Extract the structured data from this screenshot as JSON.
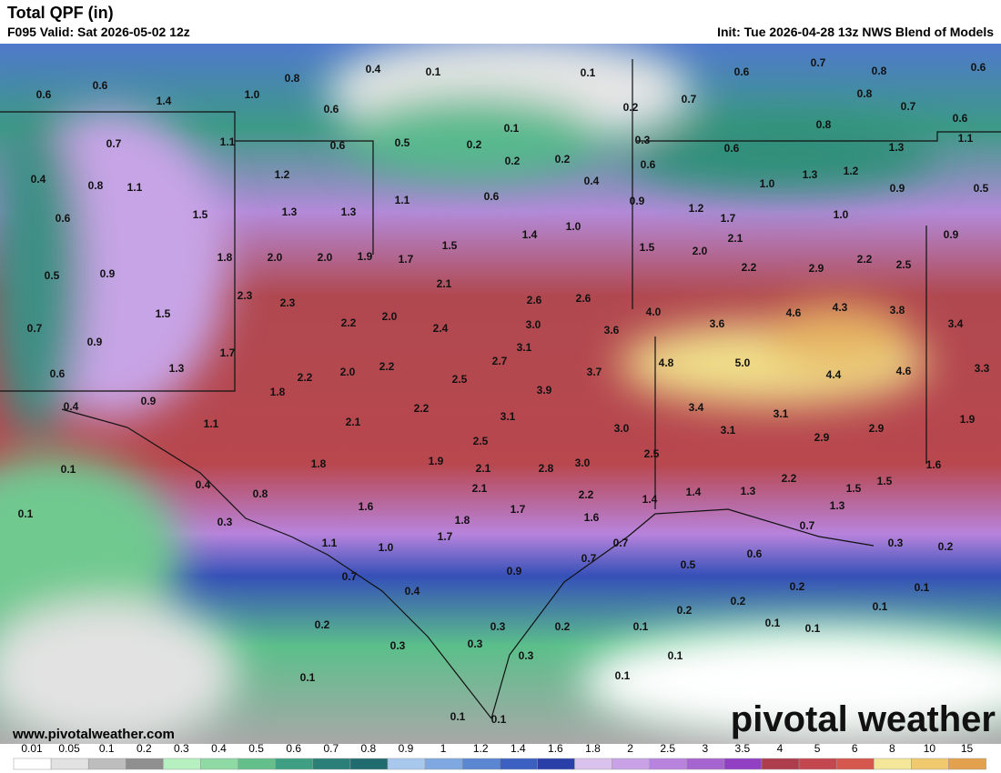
{
  "header": {
    "title": "Total QPF (in)",
    "valid": "F095 Valid: Sat 2026-05-02 12z",
    "init": "Init: Tue 2026-04-28 13z NWS Blend of Models"
  },
  "map_labels": [
    "0.6",
    "0.6",
    "1.4",
    "1.0",
    "0.8",
    "0.6",
    "0.4",
    "0.1",
    "0.1",
    "0.6",
    "0.7",
    "0.8",
    "0.6",
    "0.8",
    "0.7",
    "0.2",
    "0.7",
    "0.6",
    "0.1",
    "0.8",
    "1.1",
    "0.7",
    "1.1",
    "0.6",
    "0.5",
    "0.2",
    "0.3",
    "0.6",
    "1.3",
    "0.2",
    "0.2",
    "0.6",
    "1.3",
    "1.2",
    "0.4",
    "0.8",
    "1.1",
    "1.2",
    "0.4",
    "1.0",
    "0.9",
    "0.5",
    "0.6",
    "1.1",
    "0.9",
    "1.3",
    "1.3",
    "1.5",
    "0.6",
    "1.2",
    "1.7",
    "1.0",
    "1.0",
    "1.4",
    "0.9",
    "2.1",
    "1.5",
    "1.5",
    "2.0",
    "1.8",
    "2.0",
    "2.0",
    "1.9",
    "1.7",
    "2.2",
    "2.5",
    "2.9",
    "2.2",
    "0.9",
    "0.5",
    "2.1",
    "2.3",
    "2.3",
    "2.6",
    "2.6",
    "4.3",
    "3.8",
    "4.6",
    "4.0",
    "1.5",
    "2.2",
    "2.0",
    "3.6",
    "3.0",
    "3.4",
    "0.7",
    "0.9",
    "2.4",
    "3.6",
    "1.7",
    "3.1",
    "5.0",
    "4.8",
    "4.4",
    "4.6",
    "3.3",
    "1.3",
    "0.6",
    "2.2",
    "2.0",
    "2.2",
    "2.7",
    "2.5",
    "3.7",
    "3.9",
    "0.9",
    "0.4",
    "1.8",
    "2.2",
    "3.4",
    "3.1",
    "1.9",
    "2.1",
    "3.1",
    "1.1",
    "3.0",
    "3.1",
    "2.9",
    "2.9",
    "2.5",
    "2.5",
    "1.8",
    "1.9",
    "0.1",
    "2.1",
    "2.8",
    "3.0",
    "1.6",
    "2.2",
    "1.5",
    "0.4",
    "2.1",
    "1.4",
    "1.3",
    "1.5",
    "0.8",
    "2.2",
    "1.4",
    "1.6",
    "1.7",
    "1.3",
    "0.1",
    "0.3",
    "1.8",
    "1.6",
    "1.7",
    "0.7",
    "0.7",
    "1.1",
    "1.0",
    "0.6",
    "0.3",
    "0.2",
    "0.7",
    "0.5",
    "0.9",
    "0.7",
    "0.4",
    "0.2",
    "0.1",
    "0.2",
    "0.2",
    "0.1",
    "0.2",
    "0.3",
    "0.2",
    "0.1",
    "0.1",
    "0.1",
    "0.3",
    "0.3",
    "0.3",
    "0.1",
    "0.1",
    "0.1",
    "0.1",
    "0.1"
  ],
  "footer": {
    "url": "www.pivotalweather.com",
    "logo": "pivotal weather"
  },
  "colorbar": {
    "labels": [
      0.01,
      0.05,
      0.1,
      0.2,
      0.3,
      0.4,
      0.5,
      0.6,
      0.7,
      0.8,
      0.9,
      1,
      1.2,
      1.4,
      1.6,
      1.8,
      2,
      2.5,
      3,
      3.5,
      4,
      5,
      6,
      8,
      10,
      15
    ],
    "colors": [
      "#ffffff",
      "#e2e2e2",
      "#bdbdbd",
      "#8f8f8f",
      "#b6f0c0",
      "#8fd9a4",
      "#63c08b",
      "#3f9f83",
      "#2a8079",
      "#1f6b6f",
      "#a8c8ee",
      "#7fa8e0",
      "#5a86d2",
      "#3c5fc2",
      "#2a40a8",
      "#d9c2ee",
      "#c9a2e6",
      "#b783dc",
      "#a564d0",
      "#9140c4",
      "#ad3c4c",
      "#c2474e",
      "#d5574e",
      "#f4e79a",
      "#f0c86e",
      "#e3a14e"
    ]
  }
}
